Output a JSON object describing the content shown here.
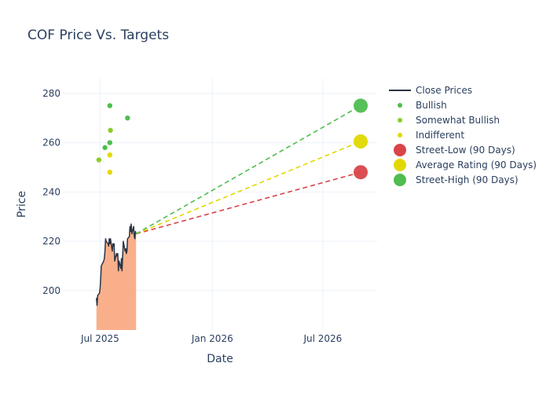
{
  "chart_data": {
    "type": "line",
    "title": "COF Price Vs. Targets",
    "xlabel": "Date",
    "ylabel": "Price",
    "x_range": [
      "2025-05-01",
      "2026-09-28"
    ],
    "ylim": [
      184,
      286
    ],
    "x_ticks": [
      {
        "date": "2025-07-01",
        "label": "Jul 2025"
      },
      {
        "date": "2026-01-01",
        "label": "Jan 2026"
      },
      {
        "date": "2026-07-01",
        "label": "Jul 2026"
      }
    ],
    "y_ticks": [
      200,
      220,
      240,
      260,
      280
    ],
    "grid": true,
    "legend_position": "right",
    "colors": {
      "close_line": "#2b3445",
      "area_fill": "#f9b08a",
      "bullish": "#4fbd4f",
      "somewhat_bullish": "#8ccd2b",
      "indifferent": "#e2d800",
      "street_low": "#d94448",
      "average": "#e2d800",
      "street_high": "#4fbd4f"
    },
    "series": [
      {
        "name": "Close Prices",
        "style": "line",
        "points": [
          [
            "2025-06-25",
            197
          ],
          [
            "2025-06-26",
            194
          ],
          [
            "2025-06-27",
            198
          ],
          [
            "2025-06-30",
            199
          ],
          [
            "2025-07-01",
            201
          ],
          [
            "2025-07-02",
            205
          ],
          [
            "2025-07-03",
            210
          ],
          [
            "2025-07-07",
            212
          ],
          [
            "2025-07-08",
            213
          ],
          [
            "2025-07-09",
            216
          ],
          [
            "2025-07-10",
            221
          ],
          [
            "2025-07-11",
            220
          ],
          [
            "2025-07-14",
            219
          ],
          [
            "2025-07-15",
            218
          ],
          [
            "2025-07-16",
            221
          ],
          [
            "2025-07-17",
            219
          ],
          [
            "2025-07-18",
            221
          ],
          [
            "2025-07-21",
            216
          ],
          [
            "2025-07-22",
            219
          ],
          [
            "2025-07-23",
            218
          ],
          [
            "2025-07-24",
            219
          ],
          [
            "2025-07-25",
            212
          ],
          [
            "2025-07-28",
            215
          ],
          [
            "2025-07-29",
            214
          ],
          [
            "2025-07-30",
            215
          ],
          [
            "2025-07-31",
            208
          ],
          [
            "2025-08-01",
            212
          ],
          [
            "2025-08-04",
            209
          ],
          [
            "2025-08-05",
            213
          ],
          [
            "2025-08-06",
            208
          ],
          [
            "2025-08-07",
            214
          ],
          [
            "2025-08-08",
            220
          ],
          [
            "2025-08-11",
            216
          ],
          [
            "2025-08-12",
            217
          ],
          [
            "2025-08-13",
            215
          ],
          [
            "2025-08-14",
            216
          ],
          [
            "2025-08-15",
            221
          ],
          [
            "2025-08-18",
            222
          ],
          [
            "2025-08-19",
            226
          ],
          [
            "2025-08-20",
            224
          ],
          [
            "2025-08-21",
            227
          ],
          [
            "2025-08-22",
            223
          ],
          [
            "2025-08-25",
            226
          ],
          [
            "2025-08-26",
            222
          ],
          [
            "2025-08-27",
            221
          ],
          [
            "2025-08-28",
            224
          ],
          [
            "2025-08-29",
            223
          ]
        ]
      },
      {
        "name": "Bullish",
        "style": "markers",
        "points": [
          [
            "2025-07-09",
            258
          ],
          [
            "2025-07-17",
            275
          ],
          [
            "2025-07-17",
            260
          ],
          [
            "2025-08-15",
            270
          ]
        ]
      },
      {
        "name": "Somewhat Bullish",
        "style": "markers",
        "points": [
          [
            "2025-06-29",
            253
          ],
          [
            "2025-07-18",
            265
          ]
        ]
      },
      {
        "name": "Indifferent",
        "style": "markers",
        "points": [
          [
            "2025-07-17",
            255
          ],
          [
            "2025-07-17",
            248
          ]
        ]
      },
      {
        "name": "Street-Low (90 Days)",
        "style": "target",
        "start": [
          "2025-08-29",
          223
        ],
        "target": [
          "2026-09-01",
          248
        ]
      },
      {
        "name": "Average Rating (90 Days)",
        "style": "target",
        "start": [
          "2025-08-29",
          223
        ],
        "target": [
          "2026-09-01",
          260.5
        ]
      },
      {
        "name": "Street-High (90 Days)",
        "style": "target",
        "start": [
          "2025-08-29",
          223
        ],
        "target": [
          "2026-09-01",
          275
        ]
      }
    ]
  }
}
